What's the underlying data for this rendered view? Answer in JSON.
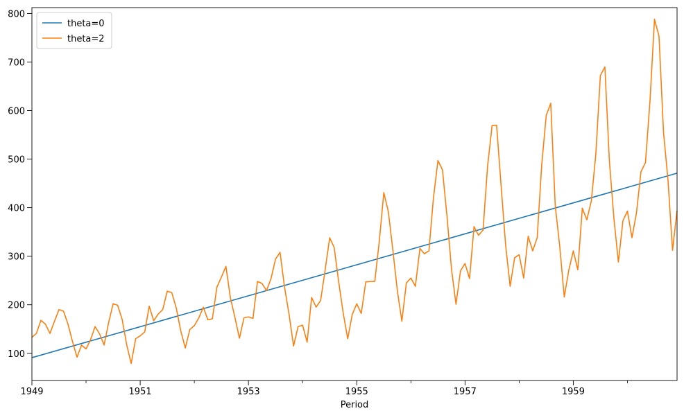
{
  "chart_data": {
    "type": "line",
    "xlabel": "Period",
    "ylabel": "",
    "xlim": [
      1949.0,
      1960.9167
    ],
    "ylim": [
      44,
      812
    ],
    "x_major_ticks": [
      1949,
      1951,
      1953,
      1955,
      1957,
      1959
    ],
    "x_minor_ticks": [
      1950,
      1952,
      1954,
      1956,
      1958,
      1960
    ],
    "y_ticks": [
      100,
      200,
      300,
      400,
      500,
      600,
      700,
      800
    ],
    "legend": {
      "position": "top-left"
    },
    "series": [
      {
        "name": "theta=0",
        "color": "#1f77b4",
        "style": "linear",
        "start": {
          "x": 1949.0,
          "y": 91
        },
        "end": {
          "x": 1960.9167,
          "y": 471
        }
      },
      {
        "name": "theta=2",
        "color": "#ff7f0e",
        "start_year": 1949,
        "start_month": 1,
        "step": "monthly",
        "values": [
          133,
          141,
          168,
          160,
          141,
          166,
          190,
          187,
          160,
          124,
          92,
          117,
          109,
          128,
          155,
          140,
          117,
          163,
          202,
          199,
          170,
          118,
          79,
          130,
          136,
          144,
          197,
          167,
          181,
          190,
          228,
          225,
          193,
          146,
          111,
          149,
          157,
          173,
          195,
          169,
          171,
          236,
          257,
          279,
          214,
          174,
          131,
          173,
          175,
          172,
          248,
          244,
          229,
          254,
          294,
          308,
          236,
          180,
          115,
          155,
          158,
          123,
          215,
          195,
          209,
          272,
          338,
          318,
          247,
          183,
          130,
          180,
          202,
          182,
          247,
          248,
          248,
          331,
          431,
          392,
          313,
          229,
          166,
          245,
          255,
          238,
          316,
          305,
          311,
          420,
          497,
          478,
          383,
          274,
          201,
          270,
          285,
          254,
          361,
          343,
          354,
          485,
          569,
          570,
          445,
          323,
          238,
          297,
          303,
          255,
          341,
          311,
          338,
          488,
          590,
          615,
          404,
          320,
          216,
          271,
          311,
          272,
          399,
          375,
          414,
          511,
          672,
          690,
          496,
          378,
          288,
          373,
          393,
          338,
          389,
          474,
          493,
          620,
          788,
          753,
          555,
          456,
          312,
          394
        ]
      }
    ]
  }
}
